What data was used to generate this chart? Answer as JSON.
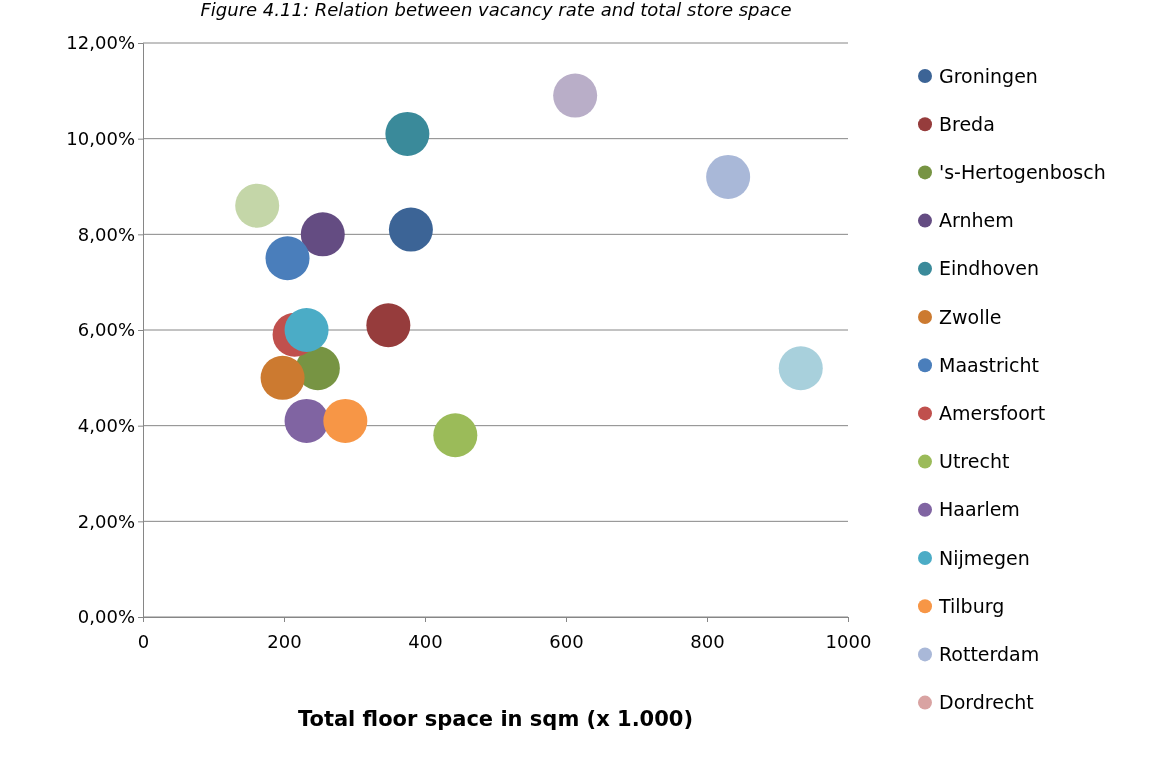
{
  "chart_data": {
    "type": "bubble",
    "title": "Figure 4.11: Relation between vacancy rate and total store space",
    "xlabel": "Total floor space in sqm (x 1.000)",
    "xlim": [
      0,
      1000
    ],
    "xticks": [
      0,
      200,
      400,
      600,
      800,
      1000
    ],
    "ylim": [
      0,
      12
    ],
    "yticks": [
      {
        "value": 0,
        "label": "0,00%"
      },
      {
        "value": 2,
        "label": "2,00%"
      },
      {
        "value": 4,
        "label": "4,00%"
      },
      {
        "value": 6,
        "label": "6,00%"
      },
      {
        "value": 8,
        "label": "8,00%"
      },
      {
        "value": 10,
        "label": "10,00%"
      },
      {
        "value": 12,
        "label": "12,00%"
      }
    ],
    "grid": "y",
    "legend": "right",
    "series": [
      {
        "name": "Groningen",
        "color": "#3c6496",
        "x": [
          380
        ],
        "values": [
          8.1
        ],
        "sizes": [
          1
        ]
      },
      {
        "name": "Breda",
        "color": "#963c3c",
        "x": [
          348
        ],
        "values": [
          6.1
        ],
        "sizes": [
          1
        ]
      },
      {
        "name": "'s-Hertogenbosch",
        "color": "#779443",
        "x": [
          248
        ],
        "values": [
          5.2
        ],
        "sizes": [
          1
        ]
      },
      {
        "name": "Arnhem",
        "color": "#644c82",
        "x": [
          255
        ],
        "values": [
          8.0
        ],
        "sizes": [
          1
        ]
      },
      {
        "name": "Eindhoven",
        "color": "#3a8a9a",
        "x": [
          375
        ],
        "values": [
          10.1
        ],
        "sizes": [
          1
        ]
      },
      {
        "name": "Zwolle",
        "color": "#cc7a30",
        "x": [
          198
        ],
        "values": [
          5.0
        ],
        "sizes": [
          1
        ]
      },
      {
        "name": "Maastricht",
        "color": "#4a7ebb",
        "x": [
          205
        ],
        "values": [
          7.5
        ],
        "sizes": [
          1
        ]
      },
      {
        "name": "Amersfoort",
        "color": "#c0504d",
        "x": [
          215
        ],
        "values": [
          5.9
        ],
        "sizes": [
          1
        ]
      },
      {
        "name": "Utrecht",
        "color": "#9bbb59",
        "x": [
          443
        ],
        "values": [
          3.8
        ],
        "sizes": [
          1
        ]
      },
      {
        "name": "Haarlem",
        "color": "#8064a2",
        "x": [
          232
        ],
        "values": [
          4.1
        ],
        "sizes": [
          1
        ]
      },
      {
        "name": "Nijmegen",
        "color": "#4bacc6",
        "x": [
          232
        ],
        "values": [
          6.0
        ],
        "sizes": [
          1
        ]
      },
      {
        "name": "Tilburg",
        "color": "#f79646",
        "x": [
          287
        ],
        "values": [
          4.1
        ],
        "sizes": [
          1
        ]
      },
      {
        "name": "Rotterdam",
        "color": "#a9b8d8",
        "x": [
          830
        ],
        "values": [
          9.2
        ],
        "sizes": [
          1
        ]
      },
      {
        "name": "Dordrecht",
        "color": "#d9a3a2",
        "x": [
          null
        ],
        "values": [
          null
        ],
        "sizes": [
          null
        ]
      },
      {
        "color": "#c4d6a8",
        "x": [
          162
        ],
        "values": [
          8.6
        ],
        "sizes": [
          1
        ]
      },
      {
        "color": "#b9aec8",
        "x": [
          613
        ],
        "values": [
          10.9
        ],
        "sizes": [
          1
        ]
      },
      {
        "color": "#a8d0dc",
        "x": [
          933
        ],
        "values": [
          5.2
        ],
        "sizes": [
          1
        ]
      }
    ]
  }
}
